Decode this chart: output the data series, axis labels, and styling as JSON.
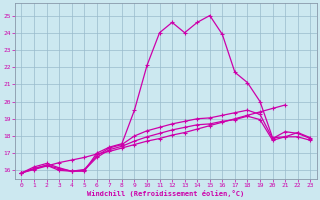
{
  "xlabel": "Windchill (Refroidissement éolien,°C)",
  "bg_color": "#cce8f0",
  "grid_color": "#99bbcc",
  "line_color": "#cc00aa",
  "spine_color": "#8899aa",
  "xlim": [
    -0.5,
    23.5
  ],
  "ylim": [
    15.5,
    25.7
  ],
  "xticks": [
    0,
    1,
    2,
    3,
    4,
    5,
    6,
    7,
    8,
    9,
    10,
    11,
    12,
    13,
    14,
    15,
    16,
    17,
    18,
    19,
    20,
    21,
    22,
    23
  ],
  "yticks": [
    16,
    17,
    18,
    19,
    20,
    21,
    22,
    23,
    24,
    25
  ],
  "line1_x": [
    0,
    1,
    2,
    3,
    4,
    5,
    6,
    7,
    8,
    9,
    10,
    11,
    12,
    13,
    14,
    15,
    16,
    17,
    18,
    19,
    20,
    21
  ],
  "line1_y": [
    15.85,
    16.05,
    16.25,
    16.45,
    16.6,
    16.75,
    16.95,
    17.1,
    17.3,
    17.5,
    17.7,
    17.85,
    18.05,
    18.2,
    18.4,
    18.6,
    18.8,
    19.0,
    19.2,
    19.4,
    19.6,
    19.8
  ],
  "line2_x": [
    0,
    1,
    2,
    3,
    4,
    5,
    6,
    7,
    8,
    9,
    10,
    11,
    12,
    13,
    14,
    15,
    16,
    17,
    18,
    19,
    20,
    21,
    22,
    23
  ],
  "line2_y": [
    15.85,
    16.1,
    16.3,
    16.0,
    15.95,
    15.95,
    17.0,
    17.35,
    17.55,
    19.5,
    22.1,
    24.0,
    24.6,
    24.0,
    24.6,
    25.0,
    23.9,
    21.7,
    21.1,
    20.0,
    17.9,
    17.95,
    18.2,
    17.9
  ],
  "line3_x": [
    0,
    1,
    2,
    3,
    4,
    5,
    6,
    7,
    8,
    9,
    10,
    11,
    12,
    13,
    14,
    15,
    16,
    17,
    18,
    19,
    20,
    21,
    22,
    23
  ],
  "line3_y": [
    15.85,
    16.2,
    16.4,
    16.15,
    15.95,
    16.05,
    16.85,
    17.3,
    17.5,
    18.0,
    18.3,
    18.5,
    18.7,
    18.85,
    19.0,
    19.05,
    19.2,
    19.35,
    19.5,
    19.25,
    17.85,
    18.25,
    18.15,
    17.85
  ],
  "line4_x": [
    0,
    1,
    2,
    3,
    4,
    5,
    6,
    7,
    8,
    9,
    10,
    11,
    12,
    13,
    14,
    15,
    16,
    17,
    18,
    19,
    20,
    21,
    22,
    23
  ],
  "line4_y": [
    15.85,
    16.1,
    16.3,
    16.1,
    15.95,
    16.0,
    16.75,
    17.2,
    17.4,
    17.7,
    17.95,
    18.15,
    18.35,
    18.5,
    18.65,
    18.7,
    18.85,
    18.95,
    19.15,
    18.95,
    17.75,
    17.95,
    17.95,
    17.75
  ]
}
